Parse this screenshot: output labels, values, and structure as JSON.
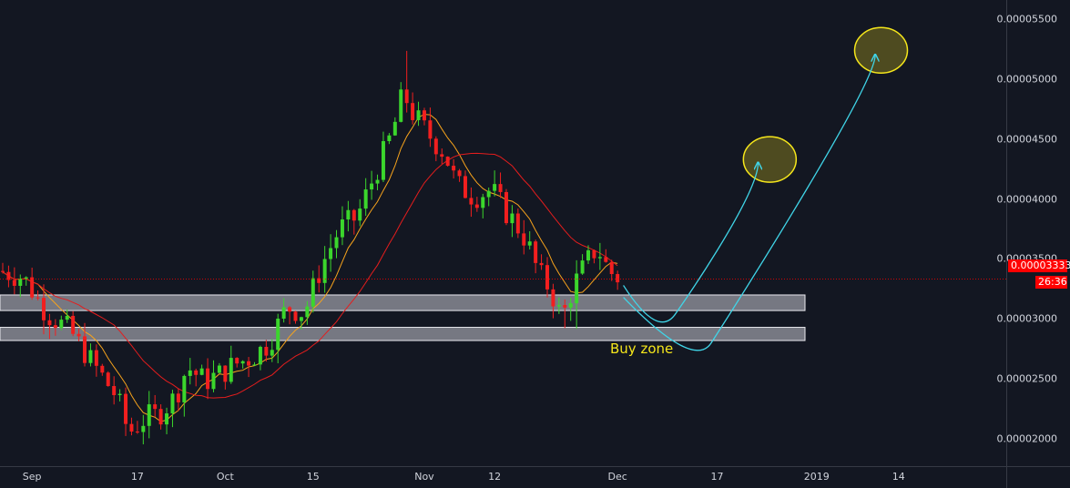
{
  "chart_data": {
    "type": "candlestick",
    "title": "",
    "xlabel": "",
    "ylabel": "",
    "ylim": [
      1.59e-05,
      5.66e-05
    ],
    "yticks": [
      "0.00002000",
      "0.00002500",
      "0.00003000",
      "0.00003500",
      "0.00004000",
      "0.00004500",
      "0.00005000",
      "0.00005500"
    ],
    "ytick_values": [
      2e-05,
      2.5e-05,
      3e-05,
      3.5e-05,
      4e-05,
      4.5e-05,
      5e-05,
      5.5e-05
    ],
    "xticks": [
      "Sep",
      "17",
      "Oct",
      "15",
      "Nov",
      "12",
      "Dec",
      "17",
      "2019",
      "14"
    ],
    "grid": false,
    "last_price": {
      "label": "0.00003333",
      "value": 3.333e-05
    },
    "countdown": "26:36",
    "series": [
      {
        "name": "",
        "kind": "candles",
        "x": [
          0,
          120
        ],
        "trend_anchors": [
          [
            0,
            3.4e-05
          ],
          [
            4,
            3.35e-05
          ],
          [
            8,
            3.05e-05
          ],
          [
            12,
            2.9e-05
          ],
          [
            16,
            2.62e-05
          ],
          [
            20,
            2.35e-05
          ],
          [
            22,
            2.05e-05
          ],
          [
            25,
            2.18e-05
          ],
          [
            27,
            2.2e-05
          ],
          [
            30,
            2.35e-05
          ],
          [
            32,
            2.6e-05
          ],
          [
            35,
            2.48e-05
          ],
          [
            38,
            2.55e-05
          ],
          [
            40,
            2.62e-05
          ],
          [
            43,
            2.68e-05
          ],
          [
            46,
            2.8e-05
          ],
          [
            49,
            3.1e-05
          ],
          [
            52,
            3.05e-05
          ],
          [
            55,
            3.45e-05
          ],
          [
            58,
            3.75e-05
          ],
          [
            61,
            3.85e-05
          ],
          [
            64,
            4.2e-05
          ],
          [
            67,
            4.55e-05
          ],
          [
            69,
            4.9e-05
          ],
          [
            70,
            4.75e-05
          ],
          [
            73,
            4.55e-05
          ],
          [
            76,
            4.38e-05
          ],
          [
            78,
            4.12e-05
          ],
          [
            81,
            4.02e-05
          ],
          [
            84,
            4.08e-05
          ],
          [
            86,
            3.92e-05
          ],
          [
            88,
            3.8e-05
          ],
          [
            90,
            3.65e-05
          ],
          [
            92,
            3.38e-05
          ],
          [
            94,
            3.25e-05
          ],
          [
            96,
            3e-05
          ],
          [
            98,
            3.28e-05
          ],
          [
            100,
            3.45e-05
          ],
          [
            102,
            3.6e-05
          ],
          [
            104,
            3.4e-05
          ],
          [
            106,
            3.33e-05
          ]
        ]
      },
      {
        "name": "",
        "kind": "ma",
        "color": "#f7a31c",
        "period": 7
      },
      {
        "name": "",
        "kind": "ma",
        "color": "#e51d1d",
        "period": 20
      }
    ],
    "zones": [
      {
        "low": 3.07e-05,
        "high": 3.2e-05
      },
      {
        "low": 2.82e-05,
        "high": 2.93e-05
      }
    ],
    "projections": [
      {
        "color": "#40d5e8",
        "points": [
          [
            106,
            3.28e-05
          ],
          [
            112,
            3.05e-05
          ],
          [
            129,
            4.3e-05
          ]
        ]
      },
      {
        "color": "#40d5e8",
        "points": [
          [
            106,
            3.18e-05
          ],
          [
            118,
            2.8e-05
          ],
          [
            149,
            5.2e-05
          ]
        ]
      }
    ],
    "targets": [
      {
        "center": [
          131,
          4.33e-05
        ],
        "color": "#f5e61b"
      },
      {
        "center": [
          150,
          5.24e-05
        ],
        "color": "#f5e61b"
      }
    ],
    "annotations": [
      {
        "text": "Buy zone"
      }
    ]
  },
  "colors": {
    "background": "#131722",
    "up": "#3bd62c",
    "down": "#f21f1f",
    "axis_text": "#d1d4dc",
    "price_line": "#ff0000"
  }
}
